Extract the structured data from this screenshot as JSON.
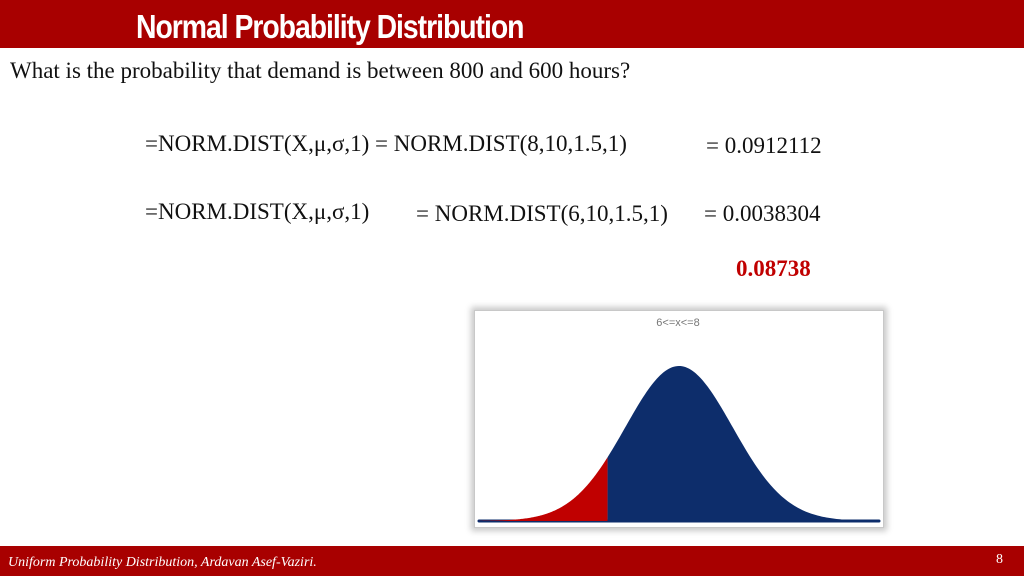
{
  "slide": {
    "title": "Normal Probability Distribution",
    "question": "What is the probability that demand is between 800 and 600 hours?",
    "line1": {
      "formula": "=NORM.DIST(X,μ,σ,1) = NORM.DIST(8,10,1.5,1)",
      "result": "= 0.0912112"
    },
    "line2": {
      "formula": "=NORM.DIST(X,μ,σ,1)",
      "evaluated": "= NORM.DIST(6,10,1.5,1)",
      "result": "= 0.0038304"
    },
    "difference": "0.08738",
    "footer": "Uniform Probability Distribution, Ardavan Asef-Vaziri.",
    "page_number": "8"
  },
  "colors": {
    "brand_red": "#a80000",
    "highlight_red": "#c00000",
    "curve_blue": "#0d2d6b"
  },
  "chart_data": {
    "type": "area",
    "title": "6<=x<=8",
    "distribution": "normal",
    "mean": 10,
    "sd": 1.5,
    "xlim": [
      4.4,
      15.6
    ],
    "highlight_range": [
      6,
      8
    ],
    "xlabel": "",
    "ylabel": "",
    "grid": false,
    "legend": "none"
  }
}
